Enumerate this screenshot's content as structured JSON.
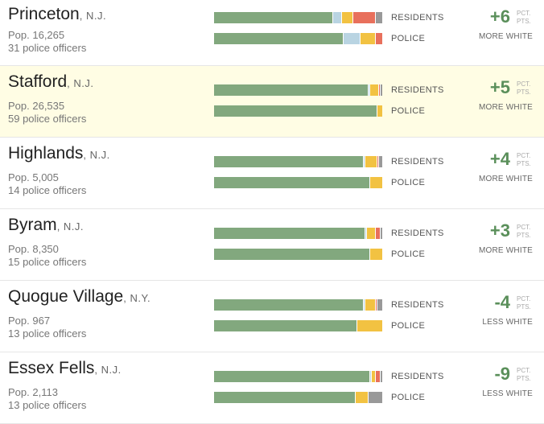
{
  "colors": {
    "white": "#82a87e",
    "black": "#b9d4e2",
    "hispanic": "#f2c242",
    "asian": "#e8705c",
    "other": "#999999",
    "positive_change": "#5a8f5a",
    "highlight_row": "#fffde4"
  },
  "labels": {
    "residents": "RESIDENTS",
    "police": "POLICE",
    "pct_line1": "PCT.",
    "pct_line2": "PTS."
  },
  "chart_data": {
    "type": "bar",
    "orientation": "horizontal",
    "stacked": true,
    "series_keys": [
      "white",
      "black",
      "hispanic",
      "asian",
      "other"
    ],
    "towns": [
      {
        "name": "Princeton",
        "state": ", N.J.",
        "population": "Pop. 16,265",
        "officers": "31 police officers",
        "residents": {
          "white": 71,
          "black": 5,
          "hispanic": 7,
          "asian": 13,
          "other": 4
        },
        "police": {
          "white": 77,
          "black": 10,
          "hispanic": 9,
          "asian": 4,
          "other": 0
        },
        "change": "+6",
        "direction": "MORE WHITE"
      },
      {
        "name": "Stafford",
        "state": ", N.J.",
        "population": "Pop. 26,535",
        "officers": "59 police officers",
        "residents": {
          "white": 92,
          "black": 1,
          "hispanic": 5,
          "asian": 1,
          "other": 1
        },
        "police": {
          "white": 97,
          "black": 0,
          "hispanic": 3,
          "asian": 0,
          "other": 0
        },
        "change": "+5",
        "direction": "MORE WHITE"
      },
      {
        "name": "Highlands",
        "state": ", N.J.",
        "population": "Pop. 5,005",
        "officers": "14 police officers",
        "residents": {
          "white": 89,
          "black": 1,
          "hispanic": 7,
          "asian": 1,
          "other": 2
        },
        "police": {
          "white": 93,
          "black": 0,
          "hispanic": 7,
          "asian": 0,
          "other": 0
        },
        "change": "+4",
        "direction": "MORE WHITE"
      },
      {
        "name": "Byram",
        "state": ", N.J.",
        "population": "Pop. 8,350",
        "officers": "15 police officers",
        "residents": {
          "white": 90,
          "black": 1,
          "hispanic": 5,
          "asian": 3,
          "other": 1
        },
        "police": {
          "white": 93,
          "black": 0,
          "hispanic": 7,
          "asian": 0,
          "other": 0
        },
        "change": "+3",
        "direction": "MORE WHITE"
      },
      {
        "name": "Quogue Village",
        "state": ", N.Y.",
        "population": "Pop. 967",
        "officers": "13 police officers",
        "residents": {
          "white": 89,
          "black": 1,
          "hispanic": 6,
          "asian": 1,
          "other": 3
        },
        "police": {
          "white": 85,
          "black": 0,
          "hispanic": 15,
          "asian": 0,
          "other": 0
        },
        "change": "-4",
        "direction": "LESS WHITE"
      },
      {
        "name": "Essex Fells",
        "state": ", N.J.",
        "population": "Pop. 2,113",
        "officers": "13 police officers",
        "residents": {
          "white": 93,
          "black": 1,
          "hispanic": 2,
          "asian": 3,
          "other": 1
        },
        "police": {
          "white": 84,
          "black": 0,
          "hispanic": 8,
          "asian": 0,
          "other": 8
        },
        "change": "-9",
        "direction": "LESS WHITE"
      }
    ]
  }
}
